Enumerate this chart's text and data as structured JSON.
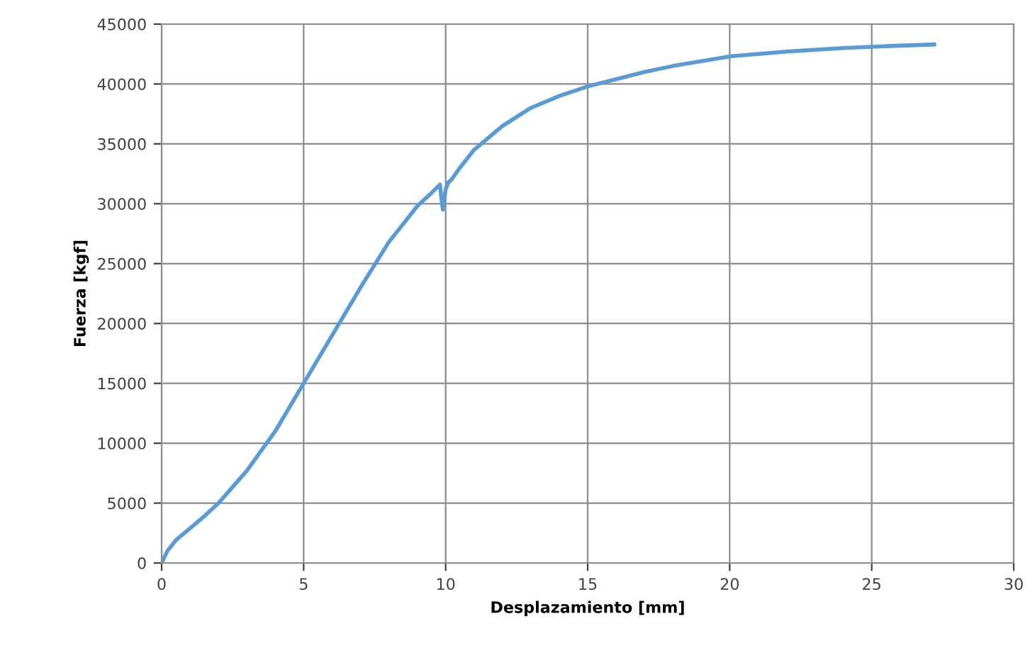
{
  "chart_data": {
    "type": "line",
    "xlabel": "Desplazamiento [mm]",
    "ylabel": "Fuerza [kgf]",
    "series": [
      {
        "color": "#5b9bd5",
        "x": [
          0,
          0.2,
          0.5,
          1,
          1.5,
          2,
          3,
          4,
          5,
          6,
          7,
          8,
          9,
          9.5,
          9.8,
          9.85,
          9.9,
          10.0,
          10.1,
          10.2,
          10.5,
          11,
          12,
          13,
          14,
          15,
          16,
          17,
          18,
          20,
          22,
          24,
          25,
          26,
          27.2
        ],
        "values": [
          0,
          1000,
          1900,
          2900,
          3900,
          5000,
          7700,
          11000,
          15000,
          19000,
          23000,
          26800,
          29800,
          30900,
          31600,
          30500,
          29500,
          31200,
          31800,
          32000,
          33000,
          34500,
          36500,
          38000,
          39000,
          39800,
          40400,
          41000,
          41500,
          42300,
          42700,
          43000,
          43100,
          43200,
          43300
        ]
      }
    ],
    "xlim": [
      0,
      30
    ],
    "xticks": [
      0,
      5,
      10,
      15,
      20,
      25,
      30
    ],
    "ylim": [
      0,
      45000
    ],
    "yticks": [
      0,
      5000,
      10000,
      15000,
      20000,
      25000,
      30000,
      35000,
      40000,
      45000
    ],
    "grid": true,
    "marker": "none",
    "line_style": "solid"
  }
}
